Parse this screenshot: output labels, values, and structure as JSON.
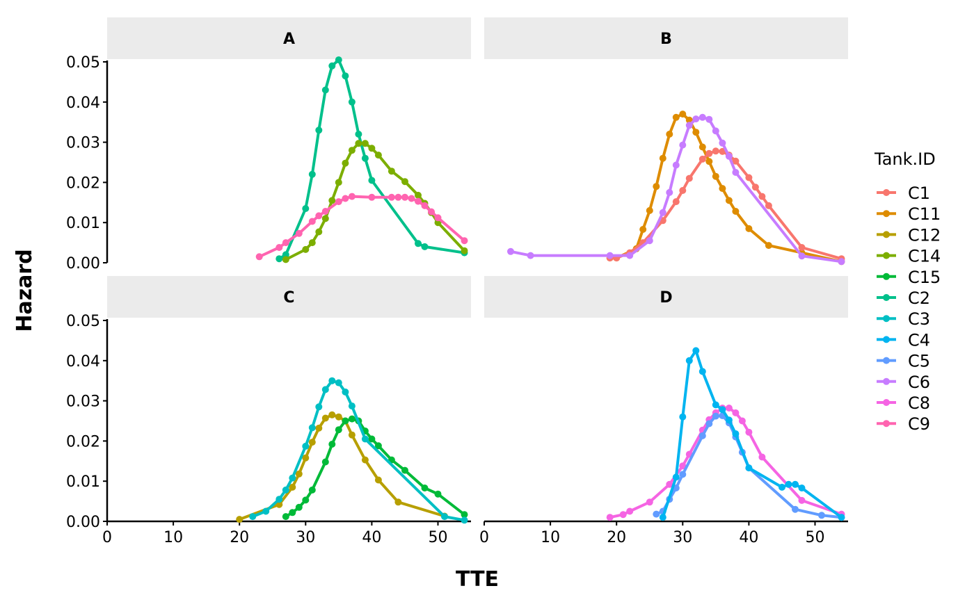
{
  "chart_data": {
    "type": "line",
    "xlabel": "TTE",
    "ylabel": "Hazard",
    "xlim": [
      0,
      55
    ],
    "ylim": [
      0,
      0.05
    ],
    "x_ticks": [
      0,
      10,
      20,
      30,
      40,
      50
    ],
    "y_ticks": [
      "0.00",
      "0.01",
      "0.02",
      "0.03",
      "0.04",
      "0.05"
    ],
    "grid": false,
    "legend": {
      "title": "Tank.ID",
      "position": "right",
      "items": [
        {
          "name": "C1",
          "color": "#F8766D"
        },
        {
          "name": "C11",
          "color": "#DE8C00"
        },
        {
          "name": "C12",
          "color": "#B79F00"
        },
        {
          "name": "C14",
          "color": "#7CAE00"
        },
        {
          "name": "C15",
          "color": "#00BA38"
        },
        {
          "name": "C2",
          "color": "#00C08B"
        },
        {
          "name": "C3",
          "color": "#00BFC4"
        },
        {
          "name": "C4",
          "color": "#00B4F0"
        },
        {
          "name": "C5",
          "color": "#619CFF"
        },
        {
          "name": "C6",
          "color": "#C77CFF"
        },
        {
          "name": "C8",
          "color": "#F564E3"
        },
        {
          "name": "C9",
          "color": "#FF64B0"
        }
      ]
    },
    "panels": [
      {
        "strip": "A",
        "series": [
          {
            "name": "C2",
            "color": "#00C08B",
            "x": [
              26,
              27,
              30,
              31,
              32,
              33,
              34,
              35,
              36,
              37,
              38,
              39,
              40,
              47,
              48,
              54
            ],
            "y": [
              0.001,
              0.002,
              0.0135,
              0.022,
              0.033,
              0.043,
              0.049,
              0.0505,
              0.0465,
              0.04,
              0.032,
              0.026,
              0.0205,
              0.0048,
              0.004,
              0.0025
            ]
          },
          {
            "name": "C14",
            "color": "#7CAE00",
            "x": [
              27,
              30,
              31,
              32,
              33,
              34,
              35,
              36,
              37,
              38,
              39,
              40,
              41,
              43,
              45,
              47,
              48,
              49,
              50,
              54
            ],
            "y": [
              0.0008,
              0.0033,
              0.005,
              0.0077,
              0.011,
              0.0155,
              0.02,
              0.0248,
              0.028,
              0.0297,
              0.0297,
              0.0285,
              0.0268,
              0.0228,
              0.0202,
              0.0168,
              0.0148,
              0.0125,
              0.01,
              0.003
            ]
          },
          {
            "name": "C9",
            "color": "#FF64B0",
            "x": [
              23,
              26,
              27,
              29,
              31,
              32,
              33,
              35,
              36,
              37,
              40,
              43,
              44,
              45,
              46,
              47,
              48,
              49,
              50,
              54
            ],
            "y": [
              0.0015,
              0.0038,
              0.005,
              0.0073,
              0.0103,
              0.0117,
              0.0128,
              0.0152,
              0.016,
              0.0165,
              0.0163,
              0.0163,
              0.0163,
              0.0163,
              0.016,
              0.0153,
              0.0142,
              0.0127,
              0.0112,
              0.0055
            ]
          }
        ]
      },
      {
        "strip": "B",
        "series": [
          {
            "name": "C11",
            "color": "#DE8C00",
            "x": [
              19,
              20,
              23,
              24,
              25,
              26,
              27,
              28,
              29,
              30,
              31,
              32,
              33,
              34,
              35,
              36,
              37,
              38,
              40,
              43,
              48,
              54
            ],
            "y": [
              0.0012,
              0.0012,
              0.0035,
              0.0083,
              0.013,
              0.019,
              0.026,
              0.032,
              0.0362,
              0.037,
              0.0355,
              0.0325,
              0.0288,
              0.0252,
              0.0215,
              0.0185,
              0.0155,
              0.0128,
              0.0085,
              0.0043,
              0.0025,
              0.0003
            ]
          },
          {
            "name": "C1",
            "color": "#F8766D",
            "x": [
              19,
              20,
              22,
              24,
              27,
              29,
              30,
              31,
              33,
              34,
              35,
              36,
              37,
              38,
              40,
              41,
              42,
              43,
              48,
              54
            ],
            "y": [
              0.0012,
              0.0012,
              0.0025,
              0.005,
              0.0105,
              0.0152,
              0.018,
              0.021,
              0.0258,
              0.0272,
              0.0278,
              0.0277,
              0.0268,
              0.0253,
              0.0212,
              0.0188,
              0.0165,
              0.0142,
              0.0038,
              0.001
            ]
          },
          {
            "name": "C6",
            "color": "#C77CFF",
            "x": [
              4,
              7,
              19,
              22,
              25,
              27,
              28,
              29,
              30,
              31,
              32,
              33,
              34,
              35,
              36,
              37,
              38,
              48,
              54
            ],
            "y": [
              0.0028,
              0.0018,
              0.0018,
              0.0018,
              0.0055,
              0.0125,
              0.0175,
              0.0243,
              0.0293,
              0.0342,
              0.0358,
              0.0362,
              0.0357,
              0.0328,
              0.0298,
              0.0265,
              0.0225,
              0.0017,
              0.0003
            ]
          }
        ]
      },
      {
        "strip": "C",
        "series": [
          {
            "name": "C12",
            "color": "#B79F00",
            "x": [
              20,
              26,
              28,
              29,
              30,
              31,
              32,
              33,
              34,
              35,
              36,
              37,
              39,
              41,
              44,
              51
            ],
            "y": [
              0.0005,
              0.0042,
              0.0085,
              0.0118,
              0.0158,
              0.0197,
              0.0232,
              0.0257,
              0.0265,
              0.026,
              0.025,
              0.0215,
              0.0153,
              0.0103,
              0.0048,
              0.0013
            ]
          },
          {
            "name": "C15",
            "color": "#00BA38",
            "x": [
              27,
              28,
              29,
              30,
              31,
              33,
              34,
              35,
              36,
              37,
              38,
              39,
              40,
              41,
              43,
              45,
              48,
              50,
              54
            ],
            "y": [
              0.0012,
              0.0022,
              0.0035,
              0.0053,
              0.0078,
              0.0148,
              0.0192,
              0.0228,
              0.025,
              0.0255,
              0.025,
              0.0225,
              0.0205,
              0.0188,
              0.0153,
              0.0127,
              0.0083,
              0.0068,
              0.0017
            ]
          },
          {
            "name": "C3",
            "color": "#00BFC4",
            "x": [
              22,
              24,
              26,
              27,
              28,
              30,
              31,
              32,
              33,
              34,
              35,
              36,
              37,
              39,
              51,
              54
            ],
            "y": [
              0.0012,
              0.0025,
              0.0055,
              0.0078,
              0.0108,
              0.0187,
              0.0233,
              0.0285,
              0.0328,
              0.035,
              0.0345,
              0.0322,
              0.0287,
              0.0205,
              0.0012,
              0.0003
            ]
          }
        ]
      },
      {
        "strip": "D",
        "series": [
          {
            "name": "C8",
            "color": "#F564E3",
            "x": [
              19,
              21,
              22,
              25,
              28,
              30,
              31,
              33,
              34,
              35,
              36,
              37,
              38,
              39,
              40,
              42,
              48,
              54
            ],
            "y": [
              0.001,
              0.0017,
              0.0025,
              0.0048,
              0.0092,
              0.0138,
              0.0167,
              0.0227,
              0.0253,
              0.027,
              0.0282,
              0.0282,
              0.027,
              0.025,
              0.0222,
              0.016,
              0.0052,
              0.0018
            ]
          },
          {
            "name": "C5",
            "color": "#619CFF",
            "x": [
              26,
              27,
              28,
              29,
              30,
              33,
              34,
              35,
              36,
              37,
              38,
              39,
              40,
              47,
              51,
              54
            ],
            "y": [
              0.0018,
              0.0025,
              0.0055,
              0.0083,
              0.0117,
              0.0213,
              0.0243,
              0.0262,
              0.0263,
              0.0245,
              0.021,
              0.0172,
              0.0133,
              0.003,
              0.0015,
              0.001
            ]
          },
          {
            "name": "C4",
            "color": "#00B4F0",
            "x": [
              27,
              29,
              30,
              31,
              32,
              33,
              35,
              36,
              37,
              38,
              40,
              45,
              46,
              47,
              48,
              54
            ],
            "y": [
              0.001,
              0.011,
              0.026,
              0.04,
              0.0425,
              0.0373,
              0.029,
              0.0278,
              0.0252,
              0.0218,
              0.0133,
              0.0085,
              0.0092,
              0.0092,
              0.0083,
              0.001
            ]
          }
        ]
      }
    ]
  }
}
